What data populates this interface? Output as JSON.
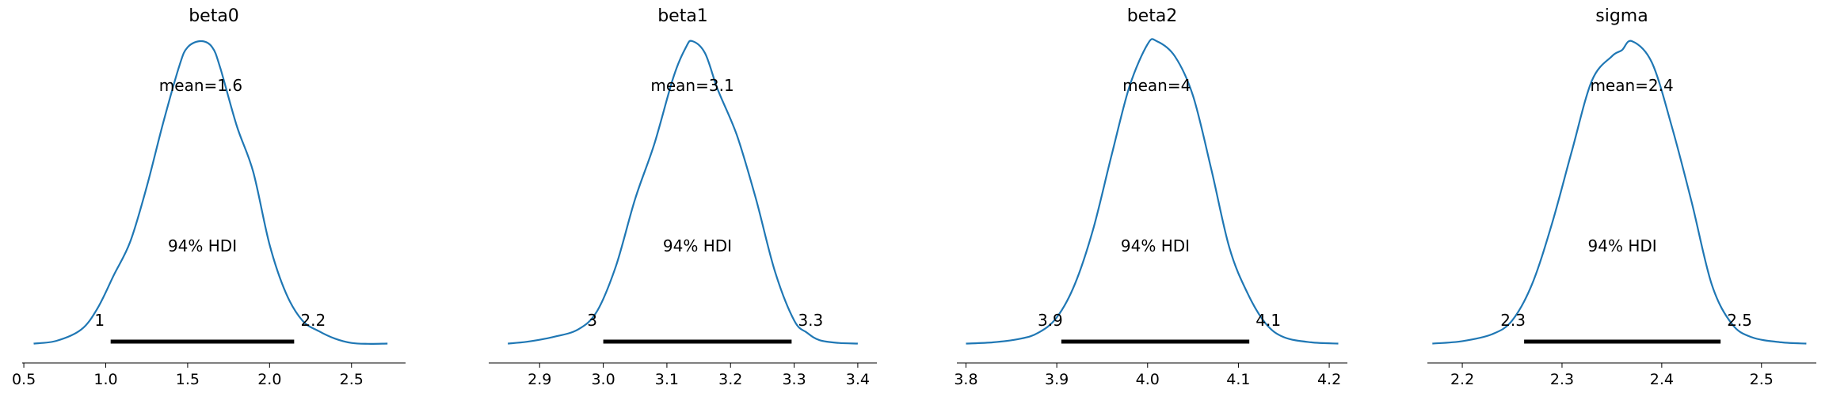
{
  "chart_data": [
    {
      "type": "line",
      "title": "beta0",
      "mean_label": "mean=1.6",
      "hdi_label": "94% HDI",
      "hdi": {
        "low": 1.03,
        "high": 2.15,
        "low_label": "1",
        "high_label": "2.2"
      },
      "xlim": [
        0.49,
        2.83
      ],
      "xticks": [
        0.5,
        1.0,
        1.5,
        2.0,
        2.5
      ],
      "xtick_labels": [
        "0.5",
        "1.0",
        "1.5",
        "2.0",
        "2.5"
      ],
      "grid": false,
      "x": [
        0.56,
        0.7,
        0.85,
        0.95,
        1.05,
        1.15,
        1.25,
        1.35,
        1.45,
        1.5,
        1.58,
        1.65,
        1.7,
        1.8,
        1.9,
        2.0,
        2.1,
        2.2,
        2.3,
        2.4,
        2.5,
        2.6,
        2.72
      ],
      "y": [
        0.004,
        0.013,
        0.05,
        0.12,
        0.23,
        0.34,
        0.52,
        0.73,
        0.92,
        0.98,
        1.0,
        0.98,
        0.91,
        0.72,
        0.57,
        0.33,
        0.17,
        0.08,
        0.045,
        0.02,
        0.006,
        0.003,
        0.004
      ]
    },
    {
      "type": "line",
      "title": "beta1",
      "mean_label": "mean=3.1",
      "hdi_label": "94% HDI",
      "hdi": {
        "low": 3.0,
        "high": 3.296,
        "low_label": "3",
        "high_label": "3.3"
      },
      "xlim": [
        2.82,
        3.43
      ],
      "xticks": [
        2.9,
        3.0,
        3.1,
        3.2,
        3.3,
        3.4
      ],
      "xtick_labels": [
        "2.9",
        "3.0",
        "3.1",
        "3.2",
        "3.3",
        "3.4"
      ],
      "grid": false,
      "x": [
        2.85,
        2.88,
        2.92,
        2.96,
        2.99,
        3.02,
        3.05,
        3.08,
        3.11,
        3.13,
        3.14,
        3.16,
        3.18,
        3.21,
        3.24,
        3.27,
        3.3,
        3.32,
        3.34,
        3.37,
        3.4
      ],
      "y": [
        0.004,
        0.01,
        0.025,
        0.05,
        0.11,
        0.26,
        0.48,
        0.66,
        0.88,
        0.98,
        1.0,
        0.96,
        0.84,
        0.69,
        0.48,
        0.24,
        0.08,
        0.04,
        0.015,
        0.006,
        0.004
      ]
    },
    {
      "type": "line",
      "title": "beta2",
      "mean_label": "mean=4",
      "hdi_label": "94% HDI",
      "hdi": {
        "low": 3.905,
        "high": 4.112,
        "low_label": "3.9",
        "high_label": "4.1"
      },
      "xlim": [
        3.79,
        4.22
      ],
      "xticks": [
        3.8,
        3.9,
        4.0,
        4.1,
        4.2
      ],
      "xtick_labels": [
        "3.8",
        "3.9",
        "4.0",
        "4.1",
        "4.2"
      ],
      "grid": false,
      "x": [
        3.8,
        3.83,
        3.86,
        3.88,
        3.9,
        3.92,
        3.94,
        3.96,
        3.98,
        4.0,
        4.01,
        4.03,
        4.05,
        4.07,
        4.09,
        4.11,
        4.13,
        4.15,
        4.18,
        4.21
      ],
      "y": [
        0.004,
        0.008,
        0.02,
        0.04,
        0.09,
        0.2,
        0.38,
        0.62,
        0.85,
        0.99,
        1.0,
        0.95,
        0.82,
        0.58,
        0.32,
        0.17,
        0.07,
        0.025,
        0.008,
        0.004
      ]
    },
    {
      "type": "line",
      "title": "sigma",
      "mean_label": "mean=2.4",
      "hdi_label": "94% HDI",
      "hdi": {
        "low": 2.262,
        "high": 2.459,
        "low_label": "2.3",
        "high_label": "2.5"
      },
      "xlim": [
        2.165,
        2.555
      ],
      "xticks": [
        2.2,
        2.3,
        2.4,
        2.5
      ],
      "xtick_labels": [
        "2.2",
        "2.3",
        "2.4",
        "2.5"
      ],
      "grid": false,
      "x": [
        2.17,
        2.2,
        2.23,
        2.25,
        2.27,
        2.29,
        2.31,
        2.33,
        2.35,
        2.36,
        2.37,
        2.39,
        2.41,
        2.43,
        2.45,
        2.47,
        2.49,
        2.52,
        2.545
      ],
      "y": [
        0.004,
        0.012,
        0.035,
        0.08,
        0.2,
        0.4,
        0.64,
        0.87,
        0.95,
        0.97,
        1.0,
        0.93,
        0.72,
        0.47,
        0.2,
        0.07,
        0.025,
        0.008,
        0.004
      ]
    }
  ]
}
